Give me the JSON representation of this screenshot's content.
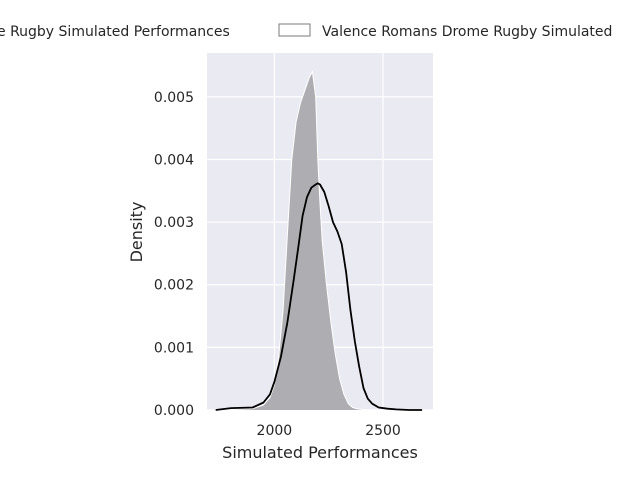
{
  "chart_data": {
    "type": "area",
    "xlabel": "Simulated Performances",
    "ylabel": "Density",
    "xlim": [
      1690,
      2730
    ],
    "ylim": [
      0,
      0.0057
    ],
    "x_ticks": [
      2000,
      2500
    ],
    "x_tick_labels": [
      "2000",
      "2500"
    ],
    "y_ticks": [
      0,
      0.001,
      0.002,
      0.003,
      0.004,
      0.005
    ],
    "y_tick_labels": [
      "0.000",
      "0.001",
      "0.002",
      "0.003",
      "0.004",
      "0.005"
    ],
    "grid": true,
    "legend_placement": "top-center",
    "series": [
      {
        "name": "Montelimar Drome Rugby Simulated Performances",
        "legend_label": "e Rugby Simulated Performances",
        "style": "line",
        "color": "#000000",
        "x": [
          1730,
          1800,
          1900,
          1950,
          1980,
          2000,
          2030,
          2060,
          2090,
          2110,
          2130,
          2150,
          2170,
          2190,
          2200,
          2210,
          2230,
          2250,
          2270,
          2290,
          2310,
          2330,
          2350,
          2370,
          2390,
          2410,
          2430,
          2450,
          2480,
          2520,
          2560,
          2620,
          2680
        ],
        "values": [
          0.0,
          3e-05,
          4e-05,
          0.00012,
          0.00025,
          0.00045,
          0.00085,
          0.0014,
          0.0021,
          0.0026,
          0.0031,
          0.0034,
          0.00355,
          0.0036,
          0.00362,
          0.0036,
          0.00348,
          0.00325,
          0.003,
          0.00285,
          0.00265,
          0.0022,
          0.0016,
          0.0011,
          0.0007,
          0.00035,
          0.00018,
          0.0001,
          4e-05,
          2e-05,
          1e-05,
          0.0,
          0.0
        ]
      },
      {
        "name": "Valence Romans Drome Rugby Simulated Performances",
        "legend_label": "Valence Romans Drome Rugby Simulated",
        "style": "area",
        "color": "#aeadb2",
        "x": [
          1750,
          1900,
          1950,
          1980,
          2000,
          2020,
          2040,
          2060,
          2080,
          2100,
          2120,
          2140,
          2160,
          2175,
          2190,
          2200,
          2210,
          2220,
          2240,
          2260,
          2280,
          2300,
          2320,
          2340,
          2360,
          2380,
          2400,
          2430,
          2500,
          2550
        ],
        "values": [
          0.0,
          2e-05,
          8e-05,
          0.0002,
          0.0004,
          0.00085,
          0.0016,
          0.0028,
          0.004,
          0.0046,
          0.0049,
          0.0051,
          0.0053,
          0.0054,
          0.005,
          0.004,
          0.0033,
          0.0027,
          0.002,
          0.0014,
          0.0009,
          0.0005,
          0.00025,
          0.0001,
          4e-05,
          2e-05,
          1e-05,
          0.0,
          0.0,
          0.0
        ]
      }
    ]
  }
}
